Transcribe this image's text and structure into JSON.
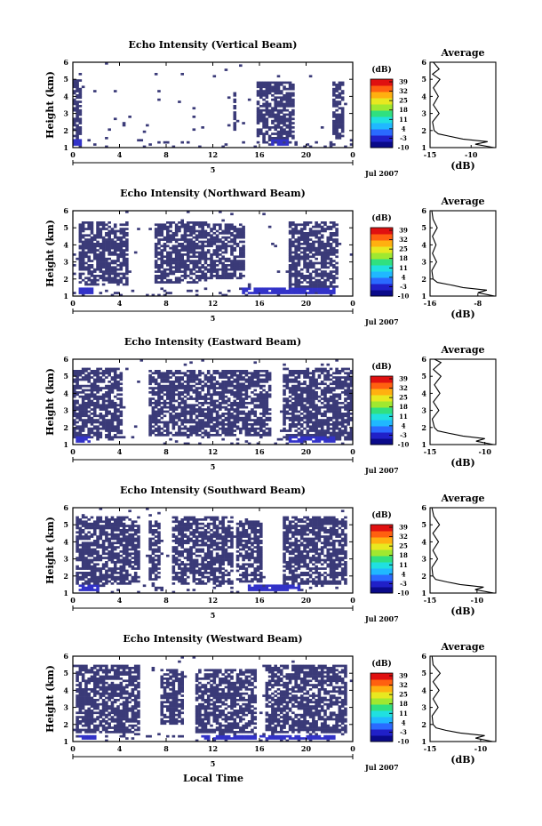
{
  "figure": {
    "xlabel": "Local Time",
    "date_label": "Jul 2007",
    "day_tick": "5"
  },
  "colorbar": {
    "unit": "(dB)",
    "ticks": [
      "39",
      "32",
      "25",
      "18",
      "11",
      "4",
      "-3",
      "-10"
    ],
    "colors": [
      "#0a0a8a",
      "#2020c8",
      "#2a6aff",
      "#20b8ff",
      "#20e0e0",
      "#30e080",
      "#a0e830",
      "#e8e820",
      "#ffb010",
      "#ff6010",
      "#e01010"
    ],
    "echo_color": "#3a3a78",
    "strong_color": "#3232c8"
  },
  "chart_data": [
    {
      "type": "heatmap",
      "title": "Echo Intensity (Vertical Beam)",
      "ylabel": "Height (km)",
      "xlim": [
        0,
        24
      ],
      "ylim": [
        1,
        6
      ],
      "xticks": [
        "0",
        "4",
        "8",
        "12",
        "16",
        "20",
        "0"
      ],
      "yticks": [
        "1",
        "2",
        "3",
        "4",
        "5",
        "6"
      ],
      "echo_periods": [
        [
          0.1,
          0.7,
          1.4,
          5.0
        ],
        [
          13.7,
          13.9,
          2.0,
          4.2
        ],
        [
          15.8,
          18.9,
          1.3,
          4.9
        ],
        [
          22.3,
          23.2,
          1.5,
          4.9
        ]
      ],
      "strong_periods": [
        [
          0.1,
          0.7,
          1.1,
          1.5
        ],
        [
          17.0,
          18.5,
          1.1,
          1.5
        ]
      ],
      "noise_level": 0.08
    },
    {
      "type": "heatmap",
      "title": "Echo Intensity (Northward Beam)",
      "ylabel": "Height (km)",
      "xlim": [
        0,
        24
      ],
      "ylim": [
        1,
        6
      ],
      "xticks": [
        "0",
        "4",
        "8",
        "12",
        "16",
        "20",
        "0"
      ],
      "yticks": [
        "1",
        "2",
        "3",
        "4",
        "5",
        "6"
      ],
      "echo_periods": [
        [
          0.4,
          4.8,
          1.6,
          5.4
        ],
        [
          7.0,
          11.5,
          1.7,
          5.4
        ],
        [
          11.6,
          14.8,
          2.0,
          5.2
        ],
        [
          18.5,
          22.8,
          1.5,
          5.4
        ]
      ],
      "strong_periods": [
        [
          0.6,
          1.8,
          1.1,
          1.5
        ],
        [
          14.5,
          22.5,
          1.1,
          1.5
        ]
      ],
      "noise_level": 0.1
    },
    {
      "type": "heatmap",
      "title": "Echo Intensity (Eastward Beam)",
      "ylabel": "Height (km)",
      "xlim": [
        0,
        24
      ],
      "ylim": [
        1,
        6
      ],
      "xticks": [
        "0",
        "4",
        "8",
        "12",
        "16",
        "20",
        "0"
      ],
      "yticks": [
        "1",
        "2",
        "3",
        "4",
        "5",
        "6"
      ],
      "echo_periods": [
        [
          0.1,
          4.3,
          1.4,
          5.5
        ],
        [
          6.5,
          11.5,
          1.5,
          5.4
        ],
        [
          11.6,
          16.9,
          1.5,
          5.4
        ],
        [
          18.0,
          24.0,
          1.3,
          5.5
        ]
      ],
      "strong_periods": [
        [
          0.2,
          1.6,
          1.1,
          1.5
        ],
        [
          18.5,
          22.5,
          1.1,
          1.5
        ]
      ],
      "noise_level": 0.1
    },
    {
      "type": "heatmap",
      "title": "Echo Intensity (Southward Beam)",
      "ylabel": "Height (km)",
      "xlim": [
        0,
        24
      ],
      "ylim": [
        1,
        6
      ],
      "xticks": [
        "0",
        "4",
        "8",
        "12",
        "16",
        "20",
        "0"
      ],
      "yticks": [
        "1",
        "2",
        "3",
        "4",
        "5",
        "6"
      ],
      "echo_periods": [
        [
          0.2,
          5.8,
          1.5,
          5.5
        ],
        [
          6.4,
          7.6,
          1.8,
          5.3
        ],
        [
          8.5,
          13.8,
          1.5,
          5.5
        ],
        [
          13.9,
          16.2,
          1.6,
          5.2
        ],
        [
          18.0,
          23.5,
          1.5,
          5.5
        ]
      ],
      "strong_periods": [
        [
          0.6,
          2.2,
          1.1,
          1.5
        ],
        [
          15.0,
          19.5,
          1.1,
          1.5
        ]
      ],
      "noise_level": 0.1
    },
    {
      "type": "heatmap",
      "title": "Echo Intensity (Westward Beam)",
      "ylabel": "Height (km)",
      "xlim": [
        0,
        24
      ],
      "ylim": [
        1,
        6
      ],
      "xticks": [
        "0",
        "4",
        "8",
        "12",
        "16",
        "20",
        "0"
      ],
      "yticks": [
        "1",
        "2",
        "3",
        "4",
        "5",
        "6"
      ],
      "echo_periods": [
        [
          0.3,
          5.8,
          1.5,
          5.5
        ],
        [
          7.5,
          9.5,
          2.0,
          5.2
        ],
        [
          10.5,
          15.8,
          1.5,
          5.3
        ],
        [
          16.5,
          23.6,
          1.5,
          5.5
        ]
      ],
      "strong_periods": [
        [
          0.6,
          2.0,
          1.1,
          1.4
        ],
        [
          11.0,
          22.5,
          1.1,
          1.4
        ]
      ],
      "noise_level": 0.1
    }
  ],
  "averages": [
    {
      "title": "Average",
      "xlabel": "(dB)",
      "xlim": [
        -15,
        -7
      ],
      "xticks": [
        "-15",
        "-10"
      ],
      "yticks": [
        "1",
        "2",
        "3",
        "4",
        "5",
        "6"
      ],
      "profile": [
        [
          -7.2,
          1.0
        ],
        [
          -9.5,
          1.2
        ],
        [
          -8.0,
          1.35
        ],
        [
          -11.0,
          1.5
        ],
        [
          -12.5,
          1.65
        ],
        [
          -14.0,
          1.8
        ],
        [
          -14.5,
          2.0
        ],
        [
          -14.7,
          2.5
        ],
        [
          -13.9,
          3.0
        ],
        [
          -14.6,
          3.5
        ],
        [
          -14.0,
          4.0
        ],
        [
          -14.6,
          4.5
        ],
        [
          -13.8,
          5.0
        ],
        [
          -14.7,
          5.3
        ],
        [
          -13.9,
          5.6
        ],
        [
          -14.6,
          6.0
        ]
      ]
    },
    {
      "title": "Average",
      "xlabel": "(dB)",
      "xlim": [
        -16,
        -5
      ],
      "xticks": [
        "-16",
        "-8"
      ],
      "yticks": [
        "1",
        "2",
        "3",
        "4",
        "5",
        "6"
      ],
      "profile": [
        [
          -5.2,
          1.0
        ],
        [
          -8.0,
          1.2
        ],
        [
          -6.5,
          1.35
        ],
        [
          -10.5,
          1.5
        ],
        [
          -12.5,
          1.65
        ],
        [
          -14.8,
          1.8
        ],
        [
          -15.5,
          2.0
        ],
        [
          -15.7,
          2.5
        ],
        [
          -14.9,
          3.0
        ],
        [
          -15.6,
          3.5
        ],
        [
          -15.0,
          4.0
        ],
        [
          -15.6,
          4.5
        ],
        [
          -14.8,
          5.0
        ],
        [
          -15.5,
          5.5
        ],
        [
          -15.7,
          6.0
        ]
      ]
    },
    {
      "title": "Average",
      "xlabel": "(dB)",
      "xlim": [
        -15,
        -9
      ],
      "xticks": [
        "-15",
        "-10"
      ],
      "yticks": [
        "1",
        "2",
        "3",
        "4",
        "5",
        "6"
      ],
      "profile": [
        [
          -9.2,
          1.0
        ],
        [
          -10.8,
          1.2
        ],
        [
          -10.0,
          1.35
        ],
        [
          -12.0,
          1.5
        ],
        [
          -13.2,
          1.65
        ],
        [
          -14.3,
          1.8
        ],
        [
          -14.6,
          2.0
        ],
        [
          -14.8,
          2.5
        ],
        [
          -14.2,
          3.0
        ],
        [
          -14.7,
          3.5
        ],
        [
          -14.1,
          4.0
        ],
        [
          -14.6,
          4.5
        ],
        [
          -14.0,
          5.0
        ],
        [
          -14.7,
          5.4
        ],
        [
          -14.0,
          5.8
        ],
        [
          -14.6,
          6.0
        ]
      ]
    },
    {
      "title": "Average",
      "xlabel": "(dB)",
      "xlim": [
        -15,
        -8
      ],
      "xticks": [
        "-15",
        "-10"
      ],
      "yticks": [
        "1",
        "2",
        "3",
        "4",
        "5",
        "6"
      ],
      "profile": [
        [
          -8.2,
          1.0
        ],
        [
          -10.2,
          1.2
        ],
        [
          -9.3,
          1.35
        ],
        [
          -11.8,
          1.5
        ],
        [
          -13.2,
          1.65
        ],
        [
          -14.4,
          1.8
        ],
        [
          -14.7,
          2.0
        ],
        [
          -14.8,
          2.5
        ],
        [
          -14.2,
          3.0
        ],
        [
          -14.7,
          3.5
        ],
        [
          -14.1,
          4.0
        ],
        [
          -14.7,
          4.5
        ],
        [
          -14.0,
          5.0
        ],
        [
          -14.6,
          5.5
        ],
        [
          -14.8,
          6.0
        ]
      ]
    },
    {
      "title": "Average",
      "xlabel": "(dB)",
      "xlim": [
        -15,
        -8.5
      ],
      "xticks": [
        "-15",
        "-10"
      ],
      "yticks": [
        "1",
        "2",
        "3",
        "4",
        "5",
        "6"
      ],
      "profile": [
        [
          -8.8,
          1.0
        ],
        [
          -10.5,
          1.2
        ],
        [
          -9.6,
          1.35
        ],
        [
          -12.0,
          1.5
        ],
        [
          -13.4,
          1.65
        ],
        [
          -14.4,
          1.8
        ],
        [
          -14.7,
          2.0
        ],
        [
          -14.8,
          2.5
        ],
        [
          -14.2,
          3.0
        ],
        [
          -14.7,
          3.5
        ],
        [
          -14.1,
          4.0
        ],
        [
          -14.7,
          4.5
        ],
        [
          -14.0,
          5.0
        ],
        [
          -14.7,
          5.5
        ],
        [
          -14.8,
          6.0
        ]
      ]
    }
  ]
}
